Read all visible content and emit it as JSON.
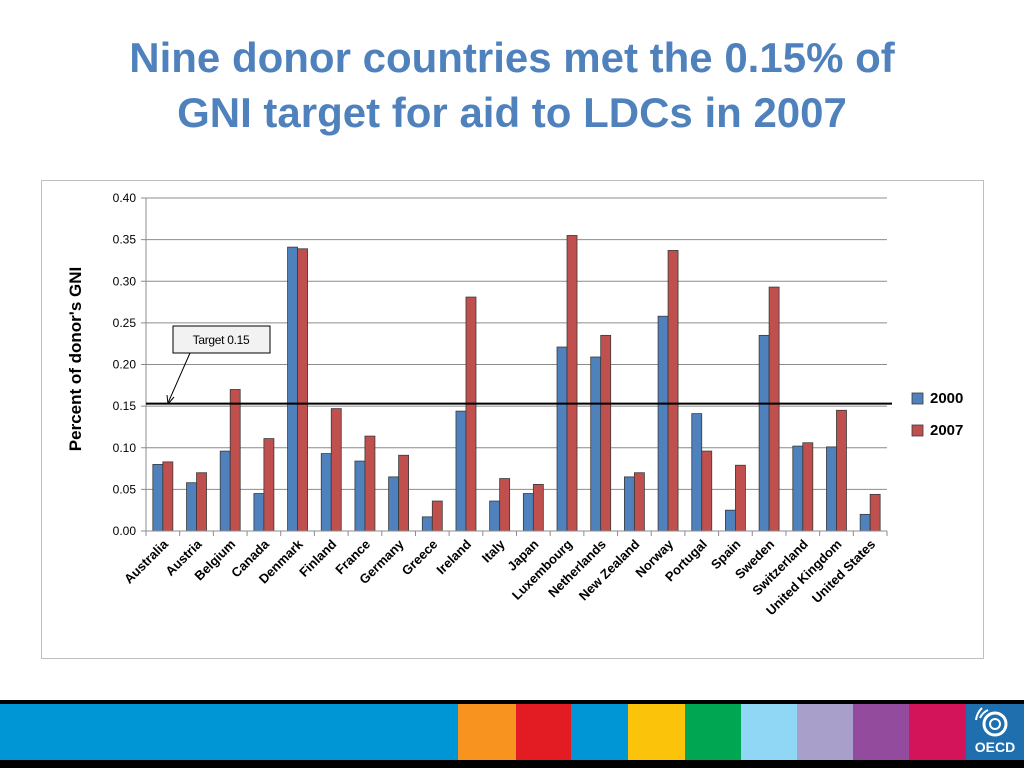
{
  "slide": {
    "title_line1": "Nine donor countries met the 0.15% of",
    "title_line2": "GNI target for aid to LDCs in 2007"
  },
  "chart_data": {
    "type": "bar",
    "ylabel": "Percent of donor's GNI",
    "ylim": [
      0,
      0.4
    ],
    "yticks": [
      "0.00",
      "0.05",
      "0.10",
      "0.15",
      "0.20",
      "0.25",
      "0.30",
      "0.35",
      "0.40"
    ],
    "grid": true,
    "legend_position": "right",
    "categories": [
      "Australia",
      "Austria",
      "Belgium",
      "Canada",
      "Denmark",
      "Finland",
      "France",
      "Germany",
      "Greece",
      "Ireland",
      "Italy",
      "Japan",
      "Luxembourg",
      "Netherlands",
      "New Zealand",
      "Norway",
      "Portugal",
      "Spain",
      "Sweden",
      "Switzerland",
      "United Kingdom",
      "United States"
    ],
    "series": [
      {
        "name": "2000",
        "color": "#4f81bd",
        "values": [
          0.08,
          0.058,
          0.096,
          0.045,
          0.341,
          0.093,
          0.084,
          0.065,
          0.017,
          0.144,
          0.036,
          0.045,
          0.221,
          0.209,
          0.065,
          0.258,
          0.141,
          0.025,
          0.235,
          0.102,
          0.101,
          0.02
        ]
      },
      {
        "name": "2007",
        "color": "#c0504d",
        "values": [
          0.083,
          0.07,
          0.17,
          0.111,
          0.339,
          0.147,
          0.114,
          0.091,
          0.036,
          0.281,
          0.063,
          0.056,
          0.355,
          0.235,
          0.07,
          0.337,
          0.096,
          0.079,
          0.293,
          0.106,
          0.145,
          0.044
        ]
      }
    ],
    "target": {
      "value": 0.15,
      "label": "Target 0.15"
    }
  },
  "footer": {
    "logo_text": "OECD",
    "stripe_colors": [
      "#0096d6",
      "#f7931e",
      "#e31b23",
      "#0096d6",
      "#fcc30b",
      "#00a651",
      "#8fd7f5",
      "#a99fcb",
      "#934b9e",
      "#d4145a"
    ]
  }
}
